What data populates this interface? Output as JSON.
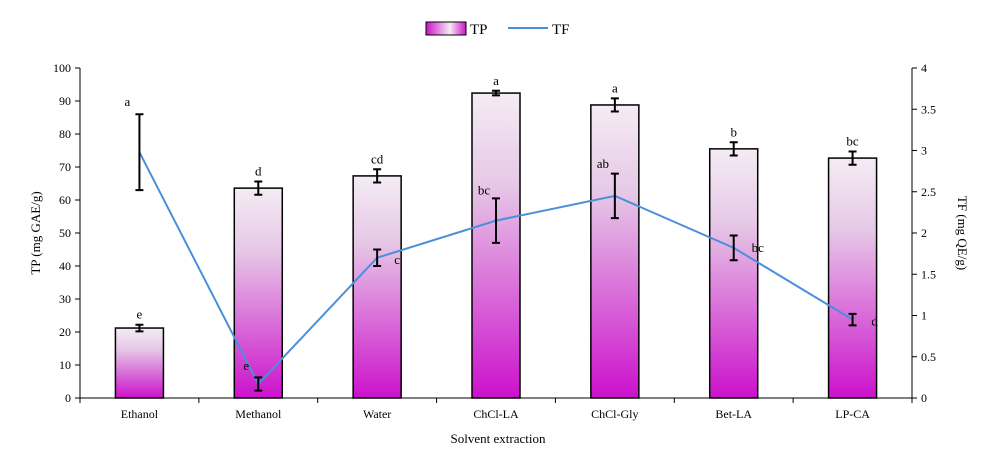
{
  "chart_data": {
    "type": "bar+line",
    "categories": [
      "Ethanol",
      "Methanol",
      "Water",
      "ChCl-LA",
      "ChCl-Gly",
      "Bet-LA",
      "LP-CA"
    ],
    "xlabel": "Solvent extraction",
    "ylabel": "TP (mg GAE/g)",
    "y2label": "TF (mg QE/g)",
    "ylim": [
      0,
      100
    ],
    "y2lim": [
      0,
      4
    ],
    "yticks": [
      "0",
      "10",
      "20",
      "30",
      "40",
      "50",
      "60",
      "70",
      "80",
      "90",
      "100"
    ],
    "y2ticks": [
      "0",
      "0.5",
      "1",
      "1.5",
      "2",
      "2.5",
      "3",
      "3.5",
      "4"
    ],
    "legend_position": "top-center",
    "series": [
      {
        "name": "TP",
        "type": "bar",
        "axis": "left",
        "color": "#cc00cc",
        "values": [
          21.2,
          63.6,
          67.3,
          92.4,
          88.8,
          75.5,
          72.7
        ],
        "errors": [
          1.0,
          2.0,
          2.0,
          0.7,
          2.0,
          2.0,
          2.0
        ],
        "letters": [
          "e",
          "d",
          "cd",
          "a",
          "a",
          "b",
          "bc"
        ]
      },
      {
        "name": "TF",
        "type": "line",
        "axis": "right",
        "color": "#4a90d9",
        "values": [
          2.98,
          0.17,
          1.7,
          2.15,
          2.45,
          1.82,
          0.95
        ],
        "errors": [
          0.46,
          0.08,
          0.1,
          0.27,
          0.27,
          0.15,
          0.07
        ],
        "letters": [
          "a",
          "e",
          "c",
          "bc",
          "ab",
          "bc",
          "d"
        ]
      }
    ]
  }
}
